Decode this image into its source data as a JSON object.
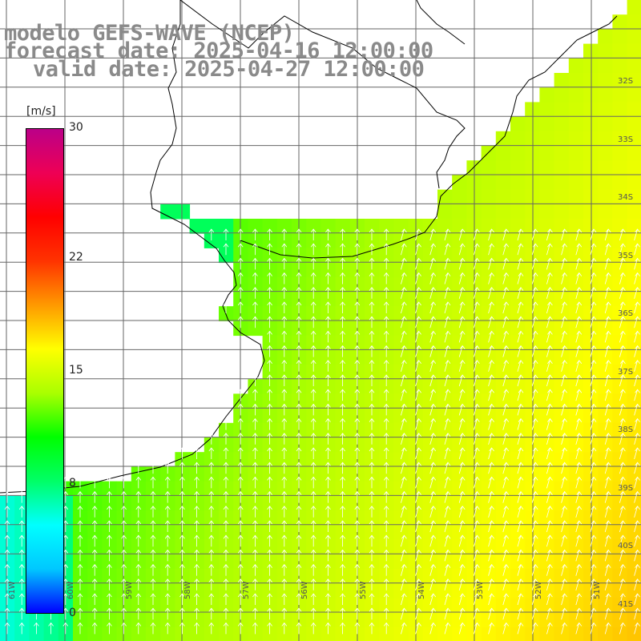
{
  "header": {
    "model": "modelo GEFS-WAVE (NCEP)",
    "forecast": "forecast date: 2025-04-16 12:00:00",
    "valid": "valid date: 2025-04-27 12:00:00"
  },
  "colorbar": {
    "unit": "[m/s]",
    "ticks": [
      {
        "label": "30",
        "value": 30
      },
      {
        "label": "22",
        "value": 22
      },
      {
        "label": "15",
        "value": 15
      },
      {
        "label": "8",
        "value": 8
      },
      {
        "label": "0",
        "value": 0
      }
    ],
    "stops": [
      "#0000ff",
      "#00c8ff",
      "#00ffff",
      "#00ff66",
      "#00ff00",
      "#aaff00",
      "#ffff00",
      "#ff9900",
      "#ff3300",
      "#ff0000",
      "#ee0055",
      "#bb0088"
    ]
  },
  "lat_labels": [
    "32S",
    "33S",
    "34S",
    "35S",
    "36S",
    "37S",
    "38S",
    "39S",
    "40S",
    "41S"
  ],
  "lon_labels": [
    "61W",
    "60W",
    "59W",
    "58W",
    "57W",
    "56W",
    "55W",
    "54W",
    "53W",
    "52W",
    "51W"
  ],
  "colors": {
    "land": "#ffffff",
    "grid": "#666666",
    "coast": "#000000",
    "arrow": "#ffffff"
  }
}
